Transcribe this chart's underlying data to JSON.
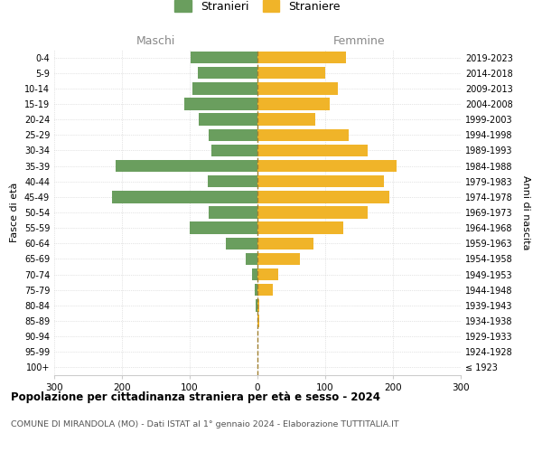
{
  "age_groups": [
    "100+",
    "95-99",
    "90-94",
    "85-89",
    "80-84",
    "75-79",
    "70-74",
    "65-69",
    "60-64",
    "55-59",
    "50-54",
    "45-49",
    "40-44",
    "35-39",
    "30-34",
    "25-29",
    "20-24",
    "15-19",
    "10-14",
    "5-9",
    "0-4"
  ],
  "birth_years": [
    "≤ 1923",
    "1924-1928",
    "1929-1933",
    "1934-1938",
    "1939-1943",
    "1944-1948",
    "1949-1953",
    "1954-1958",
    "1959-1963",
    "1964-1968",
    "1969-1973",
    "1974-1978",
    "1979-1983",
    "1984-1988",
    "1989-1993",
    "1994-1998",
    "1999-2003",
    "2004-2008",
    "2009-2013",
    "2014-2018",
    "2019-2023"
  ],
  "maschi": [
    0,
    0,
    0,
    0,
    3,
    4,
    8,
    18,
    47,
    100,
    72,
    215,
    73,
    210,
    68,
    72,
    87,
    108,
    96,
    88,
    99
  ],
  "femmine": [
    0,
    0,
    0,
    3,
    3,
    22,
    30,
    62,
    83,
    127,
    162,
    194,
    187,
    205,
    162,
    135,
    85,
    107,
    118,
    100,
    131
  ],
  "maschi_color": "#6a9e5e",
  "femmine_color": "#f0b429",
  "dashed_line_color": "#a08030",
  "grid_color": "#cccccc",
  "background_color": "#ffffff",
  "title": "Popolazione per cittadinanza straniera per età e sesso - 2024",
  "subtitle": "COMUNE DI MIRANDOLA (MO) - Dati ISTAT al 1° gennaio 2024 - Elaborazione TUTTITALIA.IT",
  "xlabel_left": "Maschi",
  "xlabel_right": "Femmine",
  "ylabel_left": "Fasce di età",
  "ylabel_right": "Anni di nascita",
  "legend_maschi": "Stranieri",
  "legend_femmine": "Straniere",
  "xlim": 300,
  "xtick_labels": [
    "300",
    "200",
    "100",
    "0",
    "100",
    "200",
    "300"
  ]
}
